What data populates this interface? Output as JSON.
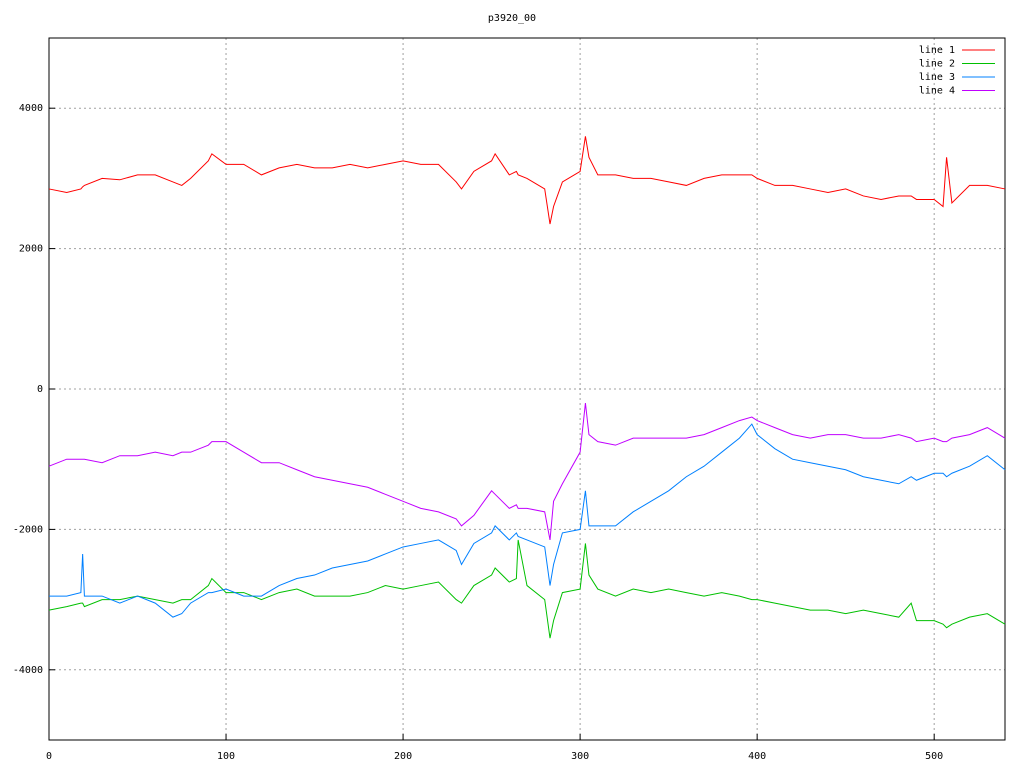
{
  "chart_data": {
    "type": "line",
    "title": "p3920_00",
    "x": [
      0,
      10,
      18,
      19,
      20,
      30,
      40,
      50,
      60,
      70,
      75,
      80,
      90,
      92,
      100,
      110,
      120,
      130,
      140,
      150,
      160,
      170,
      180,
      190,
      200,
      210,
      220,
      230,
      233,
      240,
      250,
      252,
      260,
      264,
      265,
      270,
      280,
      283,
      285,
      290,
      300,
      303,
      305,
      310,
      320,
      330,
      340,
      350,
      360,
      370,
      380,
      390,
      397,
      400,
      410,
      420,
      430,
      440,
      450,
      460,
      470,
      480,
      487,
      490,
      500,
      505,
      507,
      510,
      520,
      530,
      540
    ],
    "series": [
      {
        "name": "line 1",
        "color": "#ff0000",
        "values": [
          2850,
          2800,
          2850,
          2880,
          2900,
          3000,
          2980,
          3050,
          3050,
          2950,
          2900,
          3000,
          3250,
          3350,
          3200,
          3200,
          3050,
          3150,
          3200,
          3150,
          3150,
          3200,
          3150,
          3200,
          3250,
          3200,
          3200,
          2950,
          2850,
          3100,
          3250,
          3350,
          3050,
          3100,
          3050,
          3000,
          2850,
          2350,
          2600,
          2950,
          3100,
          3600,
          3300,
          3050,
          3050,
          3000,
          3000,
          2950,
          2900,
          3000,
          3050,
          3050,
          3050,
          3000,
          2900,
          2900,
          2850,
          2800,
          2850,
          2750,
          2700,
          2750,
          2750,
          2700,
          2700,
          2600,
          3300,
          2650,
          2900,
          2900,
          2850
        ]
      },
      {
        "name": "line 2",
        "color": "#00c000",
        "values": [
          -3150,
          -3100,
          -3050,
          -3050,
          -3100,
          -3000,
          -3000,
          -2950,
          -3000,
          -3050,
          -3000,
          -3000,
          -2800,
          -2700,
          -2900,
          -2900,
          -3000,
          -2900,
          -2850,
          -2950,
          -2950,
          -2950,
          -2900,
          -2800,
          -2850,
          -2800,
          -2750,
          -3000,
          -3050,
          -2800,
          -2650,
          -2550,
          -2750,
          -2700,
          -2150,
          -2800,
          -3000,
          -3550,
          -3300,
          -2900,
          -2850,
          -2200,
          -2650,
          -2850,
          -2950,
          -2850,
          -2900,
          -2850,
          -2900,
          -2950,
          -2900,
          -2950,
          -3000,
          -3000,
          -3050,
          -3100,
          -3150,
          -3150,
          -3200,
          -3150,
          -3200,
          -3250,
          -3050,
          -3300,
          -3300,
          -3350,
          -3400,
          -3350,
          -3250,
          -3200,
          -3350
        ]
      },
      {
        "name": "line 3",
        "color": "#0080ff",
        "values": [
          -2950,
          -2950,
          -2900,
          -2350,
          -2950,
          -2950,
          -3050,
          -2950,
          -3050,
          -3250,
          -3200,
          -3050,
          -2900,
          -2900,
          -2850,
          -2950,
          -2950,
          -2800,
          -2700,
          -2650,
          -2550,
          -2500,
          -2450,
          -2350,
          -2250,
          -2200,
          -2150,
          -2300,
          -2500,
          -2200,
          -2050,
          -1950,
          -2150,
          -2050,
          -2100,
          -2150,
          -2250,
          -2800,
          -2500,
          -2050,
          -2000,
          -1450,
          -1950,
          -1950,
          -1950,
          -1750,
          -1600,
          -1450,
          -1250,
          -1100,
          -900,
          -700,
          -500,
          -650,
          -850,
          -1000,
          -1050,
          -1100,
          -1150,
          -1250,
          -1300,
          -1350,
          -1250,
          -1300,
          -1200,
          -1200,
          -1250,
          -1200,
          -1100,
          -950,
          -1150
        ]
      },
      {
        "name": "line 4",
        "color": "#c000ff",
        "values": [
          -1100,
          -1000,
          -1000,
          -1000,
          -1000,
          -1050,
          -950,
          -950,
          -900,
          -950,
          -900,
          -900,
          -800,
          -750,
          -750,
          -900,
          -1050,
          -1050,
          -1150,
          -1250,
          -1300,
          -1350,
          -1400,
          -1500,
          -1600,
          -1700,
          -1750,
          -1850,
          -1950,
          -1800,
          -1450,
          -1500,
          -1700,
          -1650,
          -1700,
          -1700,
          -1750,
          -2150,
          -1600,
          -1350,
          -900,
          -200,
          -650,
          -750,
          -800,
          -700,
          -700,
          -700,
          -700,
          -650,
          -550,
          -450,
          -400,
          -450,
          -550,
          -650,
          -700,
          -650,
          -650,
          -700,
          -700,
          -650,
          -700,
          -750,
          -700,
          -750,
          -750,
          -700,
          -650,
          -550,
          -700
        ]
      }
    ],
    "xlim": [
      0,
      540
    ],
    "xticks": [
      0,
      100,
      200,
      300,
      400,
      500
    ],
    "ylim": [
      -5000,
      5000
    ],
    "yticks": [
      -4000,
      -2000,
      0,
      2000,
      4000
    ],
    "grid": true,
    "legend": "top-right"
  }
}
